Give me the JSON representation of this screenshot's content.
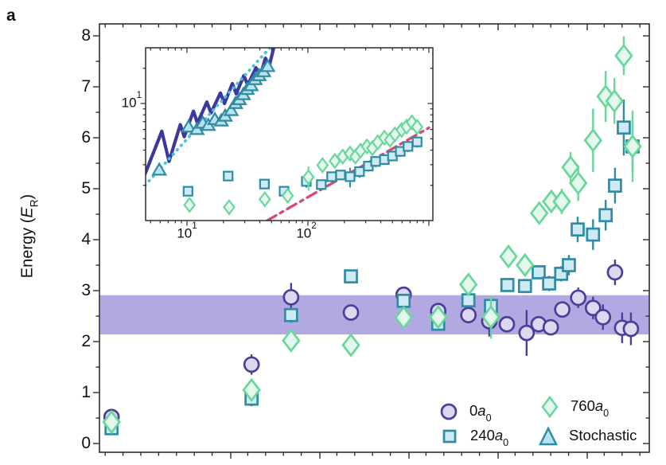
{
  "labels": {
    "panel": "a",
    "ylabel_pre": "Energy (",
    "ylabel_sym": "E",
    "ylabel_sub": "R",
    "ylabel_post": ")",
    "inset_y_base": "10",
    "inset_y_exp": "1",
    "inset_x1_base": "10",
    "inset_x1_exp": "1",
    "inset_x2_base": "10",
    "inset_x2_exp": "2"
  },
  "legend": {
    "items": [
      {
        "marker": "circle",
        "series": "0a0",
        "prefix": "0",
        "sym": "a",
        "sub": "0"
      },
      {
        "marker": "square",
        "series": "240a0",
        "prefix": "240",
        "sym": "a",
        "sub": "0"
      },
      {
        "marker": "diamond",
        "series": "760a0",
        "prefix": "760",
        "sym": "a",
        "sub": "0"
      },
      {
        "marker": "triangle",
        "series": "stochastic",
        "prefix": "Stochastic",
        "sym": "",
        "sub": ""
      }
    ]
  },
  "chart_data": {
    "type": "scatter",
    "ylabel": "Energy (E_R)",
    "main": {
      "y_ticks": [
        "0",
        "1",
        "2",
        "3",
        "4",
        "5",
        "6",
        "7",
        "8"
      ],
      "ylim": [
        0,
        8.2
      ],
      "x_axis_tick_labels_visible": false,
      "x_unit": "fraction of x-axis (axis unlabeled in image)",
      "band": {
        "y_min": 2.14,
        "y_max": 2.91,
        "color": "#b2a8e2"
      },
      "series": [
        {
          "id": "0a0",
          "marker": "circle",
          "stroke": "#4b3f99",
          "fill": "#dbd8f0",
          "points": [
            [
              0.022,
              0.52,
              0.15
            ],
            [
              0.277,
              1.55,
              0.2
            ],
            [
              0.349,
              2.87,
              0.28
            ],
            [
              0.458,
              2.57,
              0.13
            ],
            [
              0.554,
              2.92,
              0.12
            ],
            [
              0.617,
              2.6,
              0.1
            ],
            [
              0.672,
              2.52,
              0.12
            ],
            [
              0.71,
              2.4,
              0.3
            ],
            [
              0.742,
              2.34,
              0.12
            ],
            [
              0.778,
              2.17,
              0.45
            ],
            [
              0.8,
              2.34,
              0.15
            ],
            [
              0.822,
              2.28,
              0.15
            ],
            [
              0.843,
              2.63,
              0.15
            ],
            [
              0.872,
              2.86,
              0.2
            ],
            [
              0.899,
              2.66,
              0.22
            ],
            [
              0.917,
              2.48,
              0.25
            ],
            [
              0.939,
              3.36,
              0.25
            ],
            [
              0.952,
              2.27,
              0.3
            ],
            [
              0.968,
              2.25,
              0.32
            ]
          ]
        },
        {
          "id": "240a0",
          "marker": "square",
          "stroke": "#2f8ca3",
          "fill": "#cdeaf5",
          "points": [
            [
              0.022,
              0.3,
              0.12
            ],
            [
              0.277,
              0.88,
              0.15
            ],
            [
              0.349,
              2.52,
              0.15
            ],
            [
              0.458,
              3.28,
              0.12
            ],
            [
              0.554,
              2.8,
              0.1
            ],
            [
              0.617,
              2.35,
              0.1
            ],
            [
              0.672,
              2.81,
              0.1
            ],
            [
              0.713,
              2.7,
              0.1
            ],
            [
              0.743,
              3.11,
              0.1
            ],
            [
              0.775,
              3.09,
              0.12
            ],
            [
              0.8,
              3.36,
              0.12
            ],
            [
              0.819,
              3.14,
              0.15
            ],
            [
              0.841,
              3.33,
              0.15
            ],
            [
              0.855,
              3.5,
              0.2
            ],
            [
              0.871,
              4.2,
              0.25
            ],
            [
              0.899,
              4.1,
              0.3
            ],
            [
              0.922,
              4.48,
              0.3
            ],
            [
              0.939,
              5.06,
              0.35
            ],
            [
              0.955,
              6.2,
              0.55
            ],
            [
              0.971,
              5.83,
              0.5
            ]
          ]
        },
        {
          "id": "760a0",
          "marker": "diamond",
          "stroke": "#68d79a",
          "fill": "#e4f8ee",
          "points": [
            [
              0.022,
              0.42,
              0.1
            ],
            [
              0.277,
              1.05,
              0.12
            ],
            [
              0.349,
              2.02,
              0.12
            ],
            [
              0.458,
              1.93,
              0.12
            ],
            [
              0.554,
              2.47,
              0.1
            ],
            [
              0.617,
              2.48,
              0.1
            ],
            [
              0.672,
              3.12,
              0.15
            ],
            [
              0.713,
              2.48,
              0.42
            ],
            [
              0.745,
              3.67,
              0.15
            ],
            [
              0.775,
              3.5,
              0.15
            ],
            [
              0.801,
              4.52,
              0.2
            ],
            [
              0.823,
              4.75,
              0.2
            ],
            [
              0.842,
              4.75,
              0.25
            ],
            [
              0.858,
              5.42,
              0.3
            ],
            [
              0.872,
              5.11,
              0.35
            ],
            [
              0.899,
              5.95,
              0.62
            ],
            [
              0.922,
              6.81,
              0.5
            ],
            [
              0.938,
              6.72,
              0.45
            ],
            [
              0.955,
              7.61,
              0.38
            ],
            [
              0.971,
              5.83,
              0.7
            ]
          ]
        }
      ]
    },
    "inset": {
      "xscale": "log",
      "yscale": "log",
      "xlim": [
        4.5,
        1080
      ],
      "ylim": [
        1,
        30
      ],
      "x_tick_labels": [
        "10^1",
        "10^2"
      ],
      "y_tick_labels": [
        "10^1"
      ],
      "lines": [
        {
          "id": "coherent-oscillating-line",
          "color": "#3c38a0",
          "style": "solid",
          "points": [
            [
              4.5,
              2.5
            ],
            [
              6.2,
              5.8
            ],
            [
              7.1,
              3.2
            ],
            [
              8.8,
              6.6
            ],
            [
              9.5,
              5.2
            ],
            [
              11.3,
              8.6
            ],
            [
              12.2,
              6.8
            ],
            [
              14.6,
              10.3
            ],
            [
              15.8,
              8.3
            ],
            [
              18.9,
              12.3
            ],
            [
              20.4,
              10.0
            ],
            [
              23.7,
              14.8
            ],
            [
              25.5,
              12.1
            ],
            [
              29.5,
              17.3
            ],
            [
              31.8,
              14.4
            ],
            [
              37.2,
              20.2
            ],
            [
              40.3,
              17.3
            ],
            [
              44.5,
              24.4
            ],
            [
              47.9,
              20.9
            ],
            [
              52.4,
              30.5
            ]
          ]
        },
        {
          "id": "linear-growth-guide",
          "color": "#44c6da",
          "style": "dotted",
          "points": [
            [
              4.5,
              2.0
            ],
            [
              50,
              31
            ]
          ]
        },
        {
          "id": "powerlaw-fit",
          "color": "#d9486e",
          "style": "dashdot",
          "points": [
            [
              46,
              1.0
            ],
            [
              1000,
              6.2
            ]
          ]
        }
      ],
      "series": [
        {
          "id": "stochastic",
          "marker": "triangle",
          "stroke": "#2f8ca3",
          "fill": "#b9e2f0",
          "points": [
            [
              5.9,
              2.7,
              0
            ],
            [
              10.3,
              6.3,
              0
            ],
            [
              12.1,
              6.0,
              0
            ],
            [
              13.5,
              6.8,
              0
            ],
            [
              15.0,
              6.5,
              0
            ],
            [
              17.0,
              7.3,
              0
            ],
            [
              19.2,
              7.1,
              0
            ],
            [
              20.7,
              7.8,
              0
            ],
            [
              23.2,
              8.7,
              0
            ],
            [
              25.2,
              10.0,
              0
            ],
            [
              27.1,
              10.8,
              0
            ],
            [
              29.2,
              11.9,
              0
            ],
            [
              31.5,
              13.2,
              0
            ],
            [
              33.9,
              14.2,
              0
            ],
            [
              36.6,
              16.0,
              0
            ],
            [
              39.5,
              17.3,
              0
            ],
            [
              43.0,
              18.7,
              0
            ],
            [
              46.5,
              20.7,
              0
            ]
          ]
        },
        {
          "id": "240a0",
          "marker": "square",
          "stroke": "#2f8ca3",
          "fill": "#cdeaf5",
          "points": [
            [
              10.2,
              1.78,
              0
            ],
            [
              21.9,
              2.4,
              0
            ],
            [
              43.7,
              2.05,
              0
            ],
            [
              63.5,
              1.78,
              0
            ],
            [
              97,
              2.16,
              0.25
            ],
            [
              129,
              2.03,
              0.2
            ],
            [
              157,
              2.37,
              0.25
            ],
            [
              186,
              2.45,
              0
            ],
            [
              223,
              2.37,
              0.45
            ],
            [
              267,
              2.62,
              0.3
            ],
            [
              316,
              2.92,
              0.3
            ],
            [
              363,
              3.2,
              0.35
            ],
            [
              429,
              3.32,
              0.3
            ],
            [
              500,
              3.56,
              0.35
            ],
            [
              580,
              3.9,
              0.4
            ],
            [
              672,
              4.3,
              0.45
            ],
            [
              800,
              4.7,
              0.5
            ]
          ]
        },
        {
          "id": "760a0",
          "marker": "diamond",
          "stroke": "#68d79a",
          "fill": "#e4f8ee",
          "points": [
            [
              10.5,
              1.36,
              0
            ],
            [
              22.3,
              1.3,
              0
            ],
            [
              44,
              1.52,
              0
            ],
            [
              68,
              1.63,
              0
            ],
            [
              101,
              2.35,
              0.55
            ],
            [
              132,
              2.97,
              0.3
            ],
            [
              167,
              3.23,
              0.3
            ],
            [
              194,
              3.52,
              0
            ],
            [
              223,
              3.73,
              0.35
            ],
            [
              247,
              3.52,
              0.45
            ],
            [
              272,
              3.95,
              0.3
            ],
            [
              308,
              4.3,
              0.35
            ],
            [
              341,
              4.15,
              0.4
            ],
            [
              378,
              4.66,
              0.4
            ],
            [
              429,
              5.1,
              0.45
            ],
            [
              478,
              4.9,
              0.4
            ],
            [
              524,
              5.45,
              0.5
            ],
            [
              596,
              5.95,
              0.5
            ],
            [
              655,
              6.35,
              0.55
            ],
            [
              724,
              6.9,
              0.6
            ],
            [
              800,
              6.3,
              0.6
            ]
          ]
        }
      ]
    }
  }
}
